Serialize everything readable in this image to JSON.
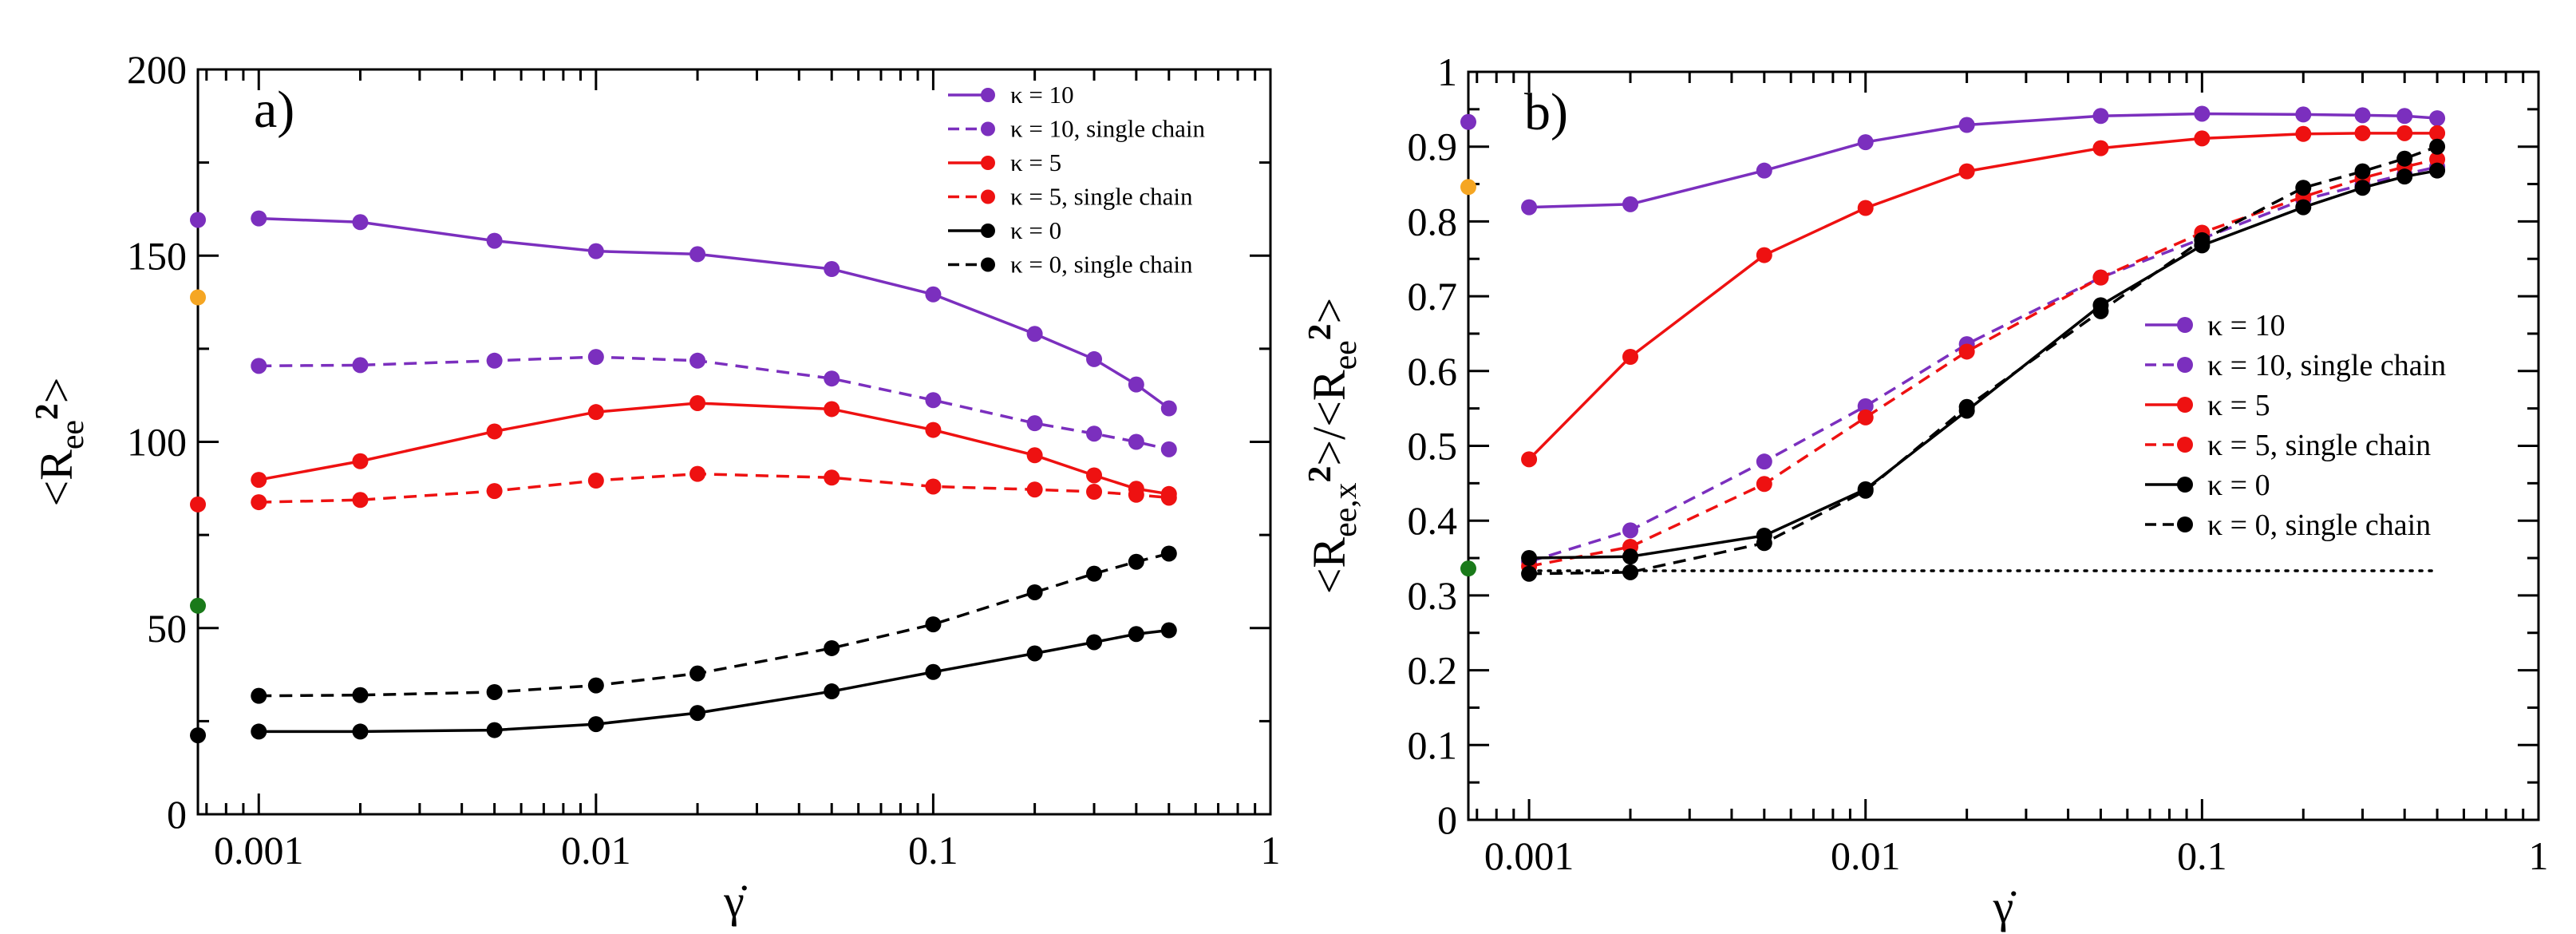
{
  "chart_data": [
    {
      "type": "line",
      "panel_label": "a)",
      "xlabel": "γ̇",
      "ylabel": "<Ree²>",
      "xscale": "log",
      "xlim": [
        0.00066,
        1
      ],
      "ylim": [
        0,
        200
      ],
      "xticks": [
        0.001,
        0.01,
        0.1,
        1
      ],
      "xtick_labels": [
        "0.001",
        "0.01",
        "0.1",
        "1"
      ],
      "yticks": [
        0,
        50,
        100,
        150,
        200
      ],
      "ytick_labels": [
        "0",
        "50",
        "100",
        "150",
        "200"
      ],
      "legend_position": "top-right",
      "x": [
        0.001,
        0.002,
        0.005,
        0.01,
        0.02,
        0.05,
        0.1,
        0.2,
        0.3,
        0.4,
        0.5
      ],
      "series": [
        {
          "name": "κ = 10",
          "color": "#7b2fbe",
          "dash": "solid",
          "values": [
            160,
            159,
            154,
            151.2,
            150.4,
            146.4,
            139.6,
            129,
            122.2,
            115.4,
            109
          ]
        },
        {
          "name": "κ = 10, single chain",
          "color": "#7b2fbe",
          "dash": "dashed",
          "values": [
            120.4,
            120.6,
            121.8,
            122.8,
            121.8,
            117,
            111.2,
            105,
            102.2,
            100,
            98
          ]
        },
        {
          "name": "κ = 5",
          "color": "#ee1111",
          "dash": "solid",
          "values": [
            89.8,
            94.8,
            102.8,
            108,
            110.4,
            108.8,
            103.2,
            96.4,
            91,
            87.4,
            86
          ]
        },
        {
          "name": "κ = 5, single chain",
          "color": "#ee1111",
          "dash": "dashed",
          "values": [
            83.8,
            84.4,
            86.8,
            89.6,
            91.4,
            90.4,
            88,
            87.2,
            86.6,
            85.8,
            85
          ]
        },
        {
          "name": "κ = 0",
          "color": "#000000",
          "dash": "solid",
          "values": [
            22.2,
            22.2,
            22.6,
            24.2,
            27.2,
            33,
            38.2,
            43.2,
            46.2,
            48.4,
            49.4
          ]
        },
        {
          "name": "κ = 0, single chain",
          "color": "#000000",
          "dash": "dashed",
          "values": [
            31.8,
            32,
            32.8,
            34.6,
            37.8,
            44.6,
            51,
            59.6,
            64.6,
            67.8,
            70
          ]
        }
      ],
      "edge_markers": [
        {
          "color": "#7b2fbe",
          "value": 159.6
        },
        {
          "color": "#f5a623",
          "value": 138.8
        },
        {
          "color": "#ee1111",
          "value": 83.2
        },
        {
          "color": "#1a7a1a",
          "value": 56
        },
        {
          "color": "#000000",
          "value": 21.2
        }
      ]
    },
    {
      "type": "line",
      "panel_label": "b)",
      "xlabel": "γ̇",
      "ylabel": "<Ree,x²>/<Ree²>",
      "xscale": "log",
      "xlim": [
        0.00066,
        1
      ],
      "ylim": [
        0,
        1
      ],
      "xticks": [
        0.001,
        0.01,
        0.1,
        1
      ],
      "xtick_labels": [
        "0.001",
        "0.01",
        "0.1",
        "1"
      ],
      "yticks": [
        0,
        0.1,
        0.2,
        0.3,
        0.4,
        0.5,
        0.6,
        0.7,
        0.8,
        0.9,
        1
      ],
      "ytick_labels": [
        "0",
        "0.1",
        "0.2",
        "0.3",
        "0.4",
        "0.5",
        "0.6",
        "0.7",
        "0.8",
        "0.9",
        "1"
      ],
      "legend_position": "center-right",
      "reference_line": {
        "value": 0.333,
        "x_range": [
          0.001,
          0.5
        ],
        "style": "dotted"
      },
      "x": [
        0.001,
        0.002,
        0.005,
        0.01,
        0.02,
        0.05,
        0.1,
        0.2,
        0.3,
        0.4,
        0.5
      ],
      "series": [
        {
          "name": "κ = 10",
          "color": "#7b2fbe",
          "dash": "solid",
          "values": [
            0.819,
            0.823,
            0.868,
            0.906,
            0.929,
            0.941,
            0.944,
            0.943,
            0.942,
            0.941,
            0.938
          ]
        },
        {
          "name": "κ = 10, single chain",
          "color": "#7b2fbe",
          "dash": "dashed",
          "values": [
            0.345,
            0.387,
            0.479,
            0.553,
            0.636,
            0.725,
            0.777,
            0.829,
            0.849,
            0.863,
            0.873
          ]
        },
        {
          "name": "κ = 5",
          "color": "#ee1111",
          "dash": "solid",
          "values": [
            0.482,
            0.619,
            0.755,
            0.818,
            0.867,
            0.898,
            0.911,
            0.917,
            0.918,
            0.918,
            0.918
          ]
        },
        {
          "name": "κ = 5, single chain",
          "color": "#ee1111",
          "dash": "dashed",
          "values": [
            0.339,
            0.365,
            0.449,
            0.538,
            0.626,
            0.725,
            0.785,
            0.833,
            0.858,
            0.873,
            0.883
          ]
        },
        {
          "name": "κ = 0",
          "color": "#000000",
          "dash": "solid",
          "values": [
            0.35,
            0.352,
            0.38,
            0.442,
            0.547,
            0.688,
            0.768,
            0.819,
            0.845,
            0.86,
            0.868
          ]
        },
        {
          "name": "κ = 0, single chain",
          "color": "#000000",
          "dash": "dashed",
          "values": [
            0.329,
            0.331,
            0.37,
            0.44,
            0.552,
            0.68,
            0.775,
            0.845,
            0.867,
            0.884,
            0.9
          ]
        }
      ],
      "edge_markers": [
        {
          "color": "#7b2fbe",
          "value": 0.933
        },
        {
          "color": "#f5a623",
          "value": 0.846
        },
        {
          "color": "#1a7a1a",
          "value": 0.336
        }
      ]
    }
  ]
}
